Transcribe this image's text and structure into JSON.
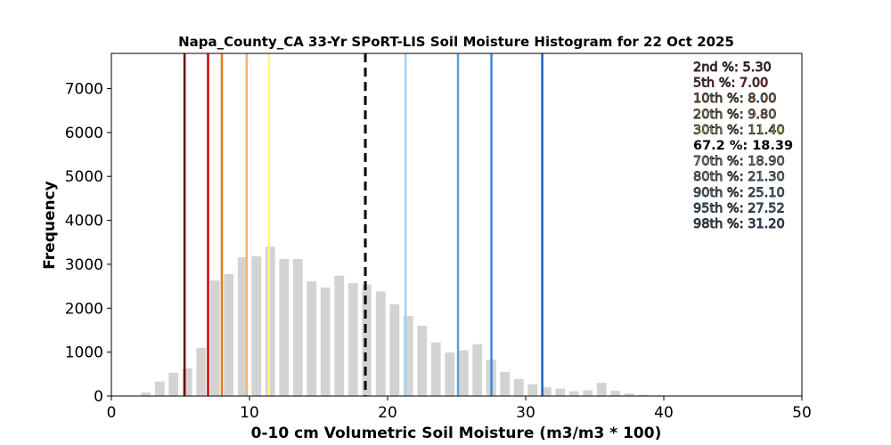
{
  "chart_data": {
    "type": "bar",
    "title": "Napa_County_CA 33-Yr SPoRT-LIS Soil Moisture Histogram for 22 Oct 2025",
    "xlabel": "0-10 cm Volumetric Soil Moisture (m3/m3 * 100)",
    "ylabel": "Frequency",
    "xlim": [
      0,
      50
    ],
    "ylim": [
      0,
      7800
    ],
    "xticks": [
      0,
      10,
      20,
      30,
      40,
      50
    ],
    "yticks": [
      0,
      1000,
      2000,
      3000,
      4000,
      5000,
      6000,
      7000
    ],
    "grid": false,
    "bar_color": "#d3d3d3",
    "bar_width": 0.7,
    "bins": [
      {
        "x": 2.5,
        "count": 80
      },
      {
        "x": 3.5,
        "count": 330
      },
      {
        "x": 4.5,
        "count": 530
      },
      {
        "x": 5.5,
        "count": 630
      },
      {
        "x": 6.5,
        "count": 1100
      },
      {
        "x": 7.5,
        "count": 2630
      },
      {
        "x": 8.5,
        "count": 2780
      },
      {
        "x": 9.5,
        "count": 3160
      },
      {
        "x": 10.5,
        "count": 3180
      },
      {
        "x": 11.5,
        "count": 3400
      },
      {
        "x": 12.5,
        "count": 3120
      },
      {
        "x": 13.5,
        "count": 3120
      },
      {
        "x": 14.5,
        "count": 2610
      },
      {
        "x": 15.5,
        "count": 2470
      },
      {
        "x": 16.5,
        "count": 2740
      },
      {
        "x": 17.5,
        "count": 2570
      },
      {
        "x": 18.5,
        "count": 2540
      },
      {
        "x": 19.5,
        "count": 2380
      },
      {
        "x": 20.5,
        "count": 2090
      },
      {
        "x": 21.5,
        "count": 1820
      },
      {
        "x": 22.5,
        "count": 1600
      },
      {
        "x": 23.5,
        "count": 1220
      },
      {
        "x": 24.5,
        "count": 990
      },
      {
        "x": 25.5,
        "count": 1040
      },
      {
        "x": 26.5,
        "count": 1180
      },
      {
        "x": 27.5,
        "count": 830
      },
      {
        "x": 28.5,
        "count": 550
      },
      {
        "x": 29.5,
        "count": 390
      },
      {
        "x": 30.5,
        "count": 270
      },
      {
        "x": 31.5,
        "count": 200
      },
      {
        "x": 32.5,
        "count": 170
      },
      {
        "x": 33.5,
        "count": 110
      },
      {
        "x": 34.5,
        "count": 130
      },
      {
        "x": 35.5,
        "count": 300
      },
      {
        "x": 36.5,
        "count": 120
      },
      {
        "x": 37.5,
        "count": 60
      },
      {
        "x": 38.5,
        "count": 30
      },
      {
        "x": 39.5,
        "count": 15
      },
      {
        "x": 40.5,
        "count": 8
      },
      {
        "x": 41.5,
        "count": 4
      }
    ],
    "percentile_lines": [
      {
        "label": "2nd %",
        "value_text": "5.30",
        "value": 5.3,
        "color": "#6b0000",
        "dashed": false
      },
      {
        "label": "5th %",
        "value_text": "7.00",
        "value": 7.0,
        "color": "#d00000",
        "dashed": false
      },
      {
        "label": "10th %",
        "value_text": "8.00",
        "value": 8.0,
        "color": "#e07a1f",
        "dashed": false
      },
      {
        "label": "20th %",
        "value_text": "9.80",
        "value": 9.8,
        "color": "#f5b26b",
        "dashed": false
      },
      {
        "label": "30th %",
        "value_text": "11.40",
        "value": 11.4,
        "color": "#ffff6a",
        "dashed": false
      },
      {
        "label": "67.2 %",
        "value_text": "18.39",
        "value": 18.39,
        "color": "#000000",
        "dashed": true
      },
      {
        "label": "70th %",
        "value_text": "18.90",
        "value": 18.9,
        "color": "#ffffff",
        "dashed": false
      },
      {
        "label": "80th %",
        "value_text": "21.30",
        "value": 21.3,
        "color": "#a6d2f2",
        "dashed": false
      },
      {
        "label": "90th %",
        "value_text": "25.10",
        "value": 25.1,
        "color": "#5aa3df",
        "dashed": false
      },
      {
        "label": "95th %",
        "value_text": "27.52",
        "value": 27.52,
        "color": "#3c8ad9",
        "dashed": false
      },
      {
        "label": "98th %",
        "value_text": "31.20",
        "value": 31.2,
        "color": "#1f5fbf",
        "dashed": false
      }
    ]
  }
}
